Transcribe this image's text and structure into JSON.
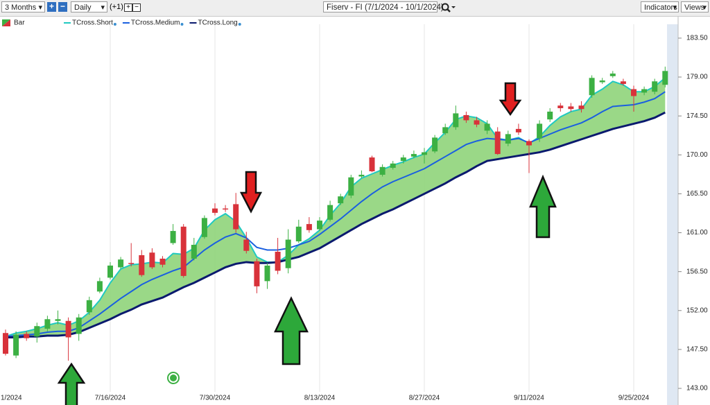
{
  "toolbar": {
    "range": "3 Months",
    "interval": "Daily",
    "offset": "(+1)",
    "symbol": "Fiserv - FI (7/1/2024 - 10/1/2024)",
    "indicators": "Indicators",
    "views": "Views"
  },
  "chart_data": {
    "type": "candlestick",
    "categories": [
      "1/2024",
      null,
      null,
      null,
      null,
      null,
      null,
      null,
      null,
      null,
      "7/16/2024",
      null,
      null,
      null,
      null,
      null,
      null,
      null,
      null,
      null,
      "7/30/2024",
      null,
      null,
      null,
      null,
      null,
      null,
      null,
      null,
      null,
      "8/13/2024",
      null,
      null,
      null,
      null,
      null,
      null,
      null,
      null,
      null,
      "8/27/2024",
      null,
      null,
      null,
      null,
      null,
      null,
      null,
      null,
      null,
      "9/11/2024",
      null,
      null,
      null,
      null,
      null,
      null,
      null,
      null,
      null,
      "9/25/2024",
      null,
      null,
      null
    ],
    "candles": {
      "name": "Bar",
      "up_color": "#3cb043",
      "down_color": "#d8323a",
      "open": [
        149.4,
        146.8,
        149.3,
        149.0,
        149.9,
        150.8,
        150.8,
        149.3,
        151.8,
        154.2,
        155.8,
        157.0,
        157.5,
        158.4,
        158.7,
        158.0,
        159.8,
        161.7,
        158.0,
        160.5,
        163.8,
        163.8,
        164.3,
        160.2,
        157.7,
        155.4,
        158.8,
        156.9,
        160.0,
        162.0,
        161.4,
        162.5,
        164.4,
        165.3,
        167.5,
        169.7,
        167.7,
        168.5,
        169.3,
        169.8,
        170.0,
        170.4,
        172.5,
        173.2,
        174.6,
        174.0,
        172.8,
        172.7,
        171.3,
        173.0,
        171.6,
        171.9,
        174.1,
        175.7,
        175.6,
        175.7,
        176.9,
        178.4,
        179.1,
        178.5,
        177.6,
        177.2,
        177.3,
        178.1
      ],
      "high": [
        149.8,
        149.6,
        149.6,
        150.6,
        151.4,
        152.0,
        151.2,
        151.6,
        153.6,
        155.8,
        157.6,
        158.2,
        159.8,
        159.0,
        159.2,
        158.3,
        162.0,
        162.0,
        160.4,
        163.0,
        164.4,
        164.2,
        165.6,
        161.1,
        158.0,
        157.5,
        160.4,
        161.4,
        162.5,
        162.8,
        162.8,
        164.7,
        165.5,
        167.7,
        168.2,
        169.9,
        168.9,
        169.3,
        170.0,
        170.5,
        170.8,
        172.3,
        173.6,
        175.7,
        175.0,
        174.4,
        174.0,
        173.2,
        172.8,
        173.6,
        171.8,
        174.0,
        175.4,
        176.0,
        176.0,
        176.2,
        179.2,
        178.9,
        179.7,
        178.8,
        178.0,
        177.9,
        178.8,
        180.2
      ],
      "low": [
        146.8,
        146.5,
        148.5,
        148.3,
        149.6,
        150.4,
        146.2,
        148.5,
        151.5,
        154.0,
        155.6,
        156.8,
        157.1,
        155.9,
        156.8,
        157.0,
        159.6,
        155.8,
        157.8,
        160.3,
        163.0,
        163.4,
        161.0,
        158.6,
        154.0,
        154.5,
        156.2,
        156.3,
        159.8,
        161.0,
        161.2,
        162.3,
        164.2,
        165.0,
        167.3,
        168.0,
        167.5,
        168.3,
        169.0,
        169.6,
        169.0,
        170.2,
        172.3,
        172.9,
        173.7,
        173.2,
        172.4,
        170.0,
        171.0,
        172.3,
        167.9,
        171.5,
        173.8,
        175.0,
        175.0,
        174.9,
        176.6,
        178.2,
        178.9,
        178.0,
        175.0,
        176.9,
        177.0,
        177.8
      ],
      "close": [
        147.0,
        149.2,
        148.8,
        150.2,
        151.0,
        151.0,
        148.9,
        151.2,
        153.2,
        155.4,
        157.2,
        157.9,
        157.4,
        156.1,
        157.0,
        157.3,
        161.2,
        156.0,
        159.6,
        162.7,
        163.3,
        163.7,
        161.4,
        158.9,
        154.8,
        157.2,
        156.6,
        160.2,
        161.7,
        161.3,
        162.4,
        164.2,
        165.2,
        167.4,
        167.7,
        168.1,
        168.6,
        169.0,
        169.7,
        170.1,
        170.3,
        172.0,
        173.2,
        174.8,
        174.0,
        173.5,
        173.6,
        170.1,
        172.4,
        172.6,
        171.1,
        173.6,
        175.0,
        175.4,
        175.3,
        175.3,
        178.9,
        178.6,
        179.4,
        178.2,
        176.8,
        177.6,
        178.5,
        179.7
      ]
    },
    "series": [
      {
        "name": "TCross.Short",
        "color": "#1fc9c0",
        "values": [
          149.0,
          149.4,
          149.6,
          149.9,
          150.3,
          150.6,
          150.3,
          150.8,
          151.8,
          153.2,
          155.2,
          156.8,
          157.3,
          157.4,
          157.6,
          157.5,
          158.6,
          158.5,
          159.2,
          161.3,
          162.5,
          163.2,
          162.3,
          160.4,
          158.2,
          157.6,
          157.6,
          158.4,
          159.6,
          160.3,
          161.3,
          163.0,
          164.4,
          166.3,
          167.3,
          167.8,
          168.3,
          168.8,
          169.2,
          169.7,
          170.1,
          171.4,
          172.6,
          174.1,
          174.5,
          174.3,
          173.6,
          171.9,
          171.7,
          172.0,
          171.3,
          172.1,
          173.4,
          174.4,
          175.0,
          175.3,
          176.9,
          177.6,
          178.5,
          178.1,
          177.3,
          177.3,
          177.9,
          178.9
        ]
      },
      {
        "name": "TCross.Medium",
        "color": "#1a5fe0",
        "values": [
          149.0,
          149.1,
          149.2,
          149.3,
          149.5,
          149.6,
          149.6,
          150.0,
          150.8,
          151.6,
          152.5,
          153.4,
          154.2,
          155.0,
          155.6,
          156.1,
          156.6,
          157.0,
          158.0,
          159.0,
          159.8,
          160.5,
          160.9,
          160.4,
          159.3,
          159.0,
          159.0,
          159.2,
          159.6,
          160.0,
          160.8,
          161.7,
          162.6,
          163.6,
          164.6,
          165.5,
          166.3,
          166.9,
          167.4,
          167.9,
          168.4,
          169.1,
          169.8,
          170.5,
          171.2,
          171.6,
          171.9,
          171.8,
          171.7,
          171.9,
          171.4,
          171.9,
          172.4,
          172.9,
          173.3,
          173.7,
          174.3,
          175.0,
          175.6,
          175.7,
          175.8,
          176.1,
          176.5,
          177.3
        ]
      },
      {
        "name": "TCross.Long",
        "color": "#0a1a6e",
        "values": [
          148.9,
          148.9,
          149.0,
          149.0,
          149.1,
          149.1,
          149.2,
          149.5,
          150.0,
          150.5,
          151.0,
          151.6,
          152.1,
          152.7,
          153.1,
          153.5,
          154.1,
          154.7,
          155.2,
          155.8,
          156.4,
          157.0,
          157.4,
          157.6,
          157.5,
          157.5,
          157.6,
          157.9,
          158.2,
          158.7,
          159.2,
          159.9,
          160.6,
          161.3,
          162.0,
          162.6,
          163.2,
          163.7,
          164.3,
          164.9,
          165.5,
          166.1,
          166.7,
          167.4,
          168.0,
          168.7,
          169.3,
          169.5,
          169.7,
          169.9,
          170.1,
          170.3,
          170.6,
          171.0,
          171.4,
          171.8,
          172.2,
          172.6,
          173.0,
          173.3,
          173.6,
          173.9,
          174.3,
          174.9
        ]
      }
    ],
    "band_color": "#8fd47a",
    "ylim": [
      141.8,
      185.1
    ],
    "yticks": [
      {
        "value": 143,
        "label": "143.00"
      },
      {
        "value": 147.5,
        "label": "147.50"
      },
      {
        "value": 152,
        "label": "152.00"
      },
      {
        "value": 156.5,
        "label": "156.50"
      },
      {
        "value": 161,
        "label": "161.00"
      },
      {
        "value": 165.5,
        "label": "165.50"
      },
      {
        "value": 170,
        "label": "170.00"
      },
      {
        "value": 174.5,
        "label": "174.50"
      },
      {
        "value": 179,
        "label": "179.00"
      },
      {
        "value": 183.5,
        "label": "183.50"
      }
    ]
  }
}
